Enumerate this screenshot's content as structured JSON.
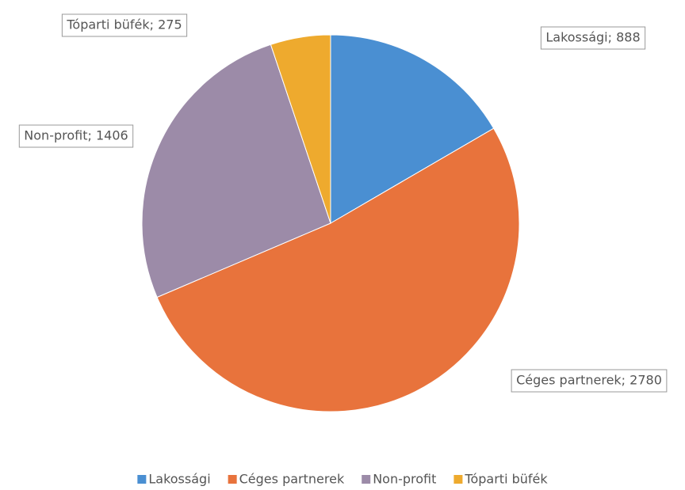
{
  "chart_data": {
    "type": "pie",
    "categories": [
      "Lakossági",
      "Céges partnerek",
      "Non-profit",
      "Tóparti büfék"
    ],
    "values": [
      888,
      2780,
      1406,
      275
    ],
    "value_labels": [
      "Lakossági; 888",
      "Céges partnerek; 2780",
      "Non-profit; 1406",
      "Tóparti büfék; 275"
    ],
    "colors": [
      "#4a8fd2",
      "#e8733c",
      "#9c8ba8",
      "#eeaa2e"
    ],
    "legend": "bottom"
  }
}
